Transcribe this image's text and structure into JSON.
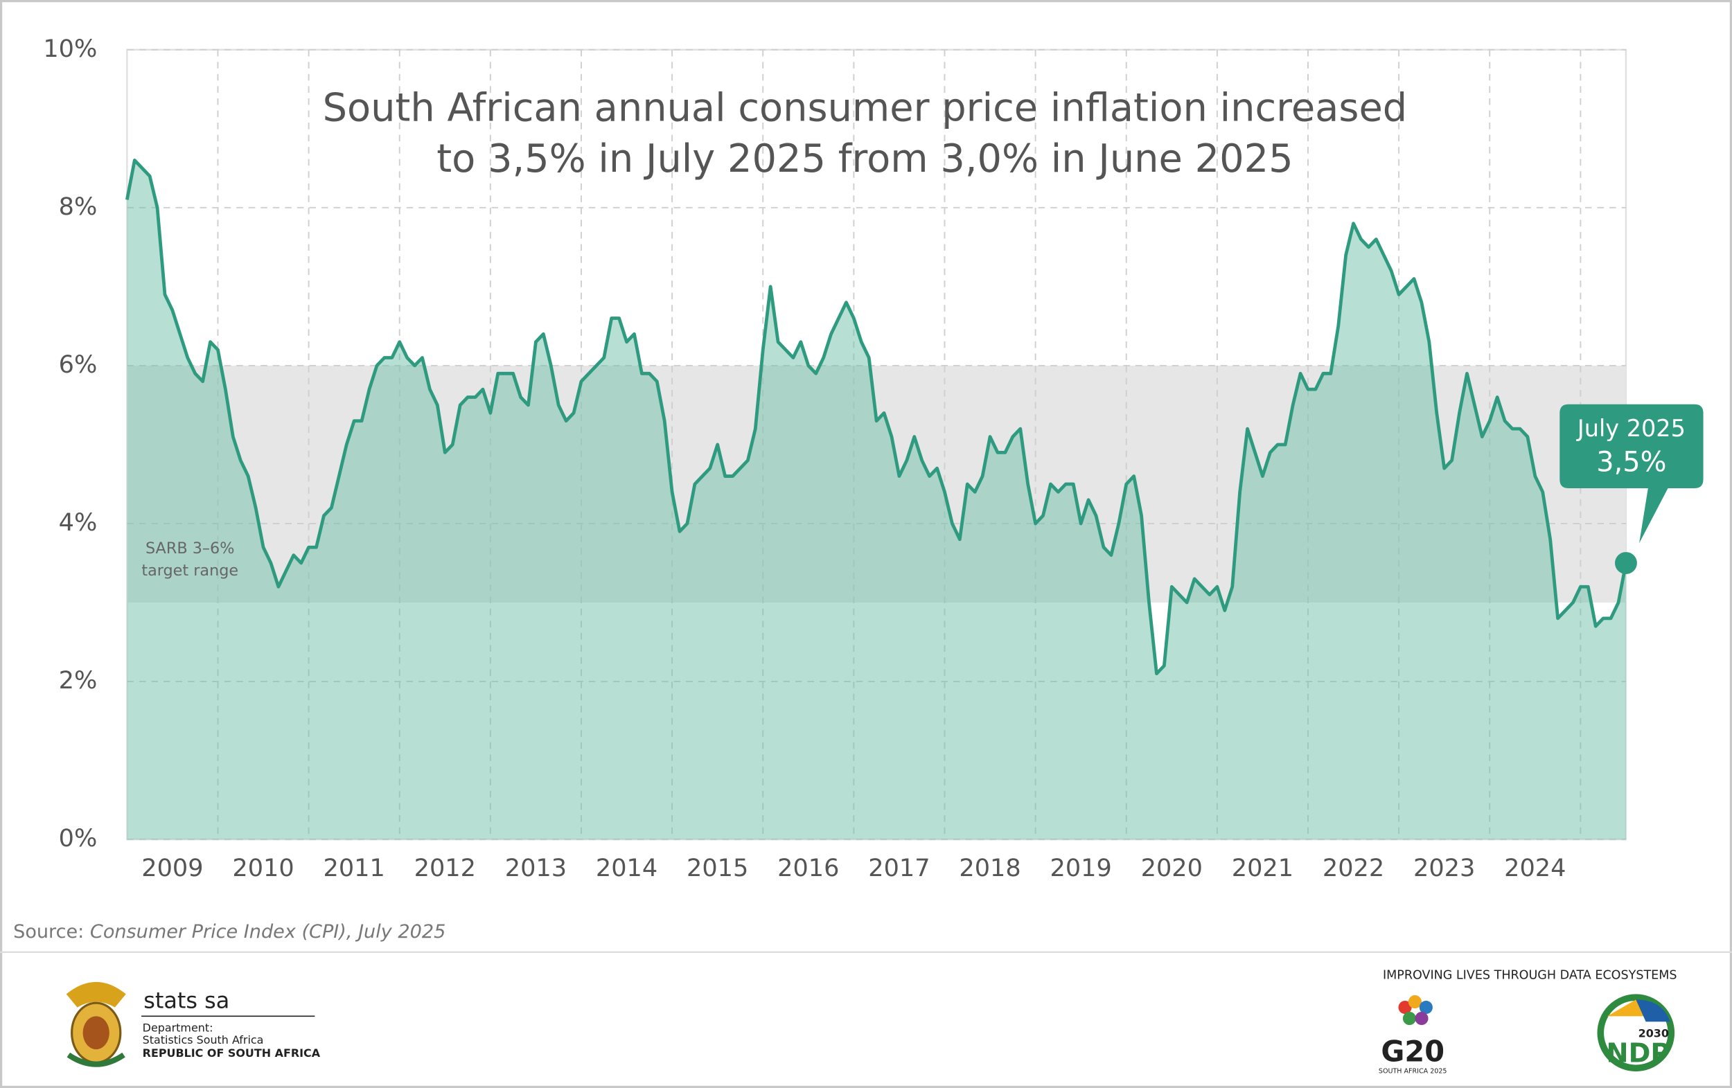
{
  "chart_data": {
    "type": "area",
    "title_lines": [
      "South African annual consumer price inflation increased",
      "to 3,5% in July 2025 from 3,0% in June 2025"
    ],
    "categories": [
      null,
      null,
      null,
      null,
      null,
      null,
      "2009",
      null,
      null,
      null,
      null,
      null,
      null,
      null,
      null,
      null,
      null,
      null,
      "2010",
      null,
      null,
      null,
      null,
      null,
      null,
      null,
      null,
      null,
      null,
      null,
      "2011",
      null,
      null,
      null,
      null,
      null,
      null,
      null,
      null,
      null,
      null,
      null,
      "2012",
      null,
      null,
      null,
      null,
      null,
      null,
      null,
      null,
      null,
      null,
      null,
      "2013",
      null,
      null,
      null,
      null,
      null,
      null,
      null,
      null,
      null,
      null,
      null,
      "2014",
      null,
      null,
      null,
      null,
      null,
      null,
      null,
      null,
      null,
      null,
      null,
      "2015",
      null,
      null,
      null,
      null,
      null,
      null,
      null,
      null,
      null,
      null,
      null,
      "2016",
      null,
      null,
      null,
      null,
      null,
      null,
      null,
      null,
      null,
      null,
      null,
      "2017",
      null,
      null,
      null,
      null,
      null,
      null,
      null,
      null,
      null,
      null,
      null,
      "2018",
      null,
      null,
      null,
      null,
      null,
      null,
      null,
      null,
      null,
      null,
      null,
      "2019",
      null,
      null,
      null,
      null,
      null,
      null,
      null,
      null,
      null,
      null,
      null,
      "2020",
      null,
      null,
      null,
      null,
      null,
      null,
      null,
      null,
      null,
      null,
      null,
      "2021",
      null,
      null,
      null,
      null,
      null,
      null,
      null,
      null,
      null,
      null,
      null,
      "2022",
      null,
      null,
      null,
      null,
      null,
      null,
      null,
      null,
      null,
      null,
      null,
      "2023",
      null,
      null,
      null,
      null,
      null,
      null,
      null,
      null,
      null,
      null,
      null,
      "2024",
      null,
      null,
      null,
      null,
      null,
      null,
      null,
      null,
      null,
      null,
      null,
      null
    ],
    "series": [
      {
        "name": "CPI",
        "color": "#2e9a7f",
        "area_color": "#6fc0aa",
        "values": [
          8.1,
          8.6,
          8.5,
          8.4,
          8.0,
          6.9,
          6.7,
          6.4,
          6.1,
          5.9,
          5.8,
          6.3,
          6.2,
          5.7,
          5.1,
          4.8,
          4.6,
          4.2,
          3.7,
          3.5,
          3.2,
          3.4,
          3.6,
          3.5,
          3.7,
          3.7,
          4.1,
          4.2,
          4.6,
          5.0,
          5.3,
          5.3,
          5.7,
          6.0,
          6.1,
          6.1,
          6.3,
          6.1,
          6.0,
          6.1,
          5.7,
          5.5,
          4.9,
          5.0,
          5.5,
          5.6,
          5.6,
          5.7,
          5.4,
          5.9,
          5.9,
          5.9,
          5.6,
          5.5,
          6.3,
          6.4,
          6.0,
          5.5,
          5.3,
          5.4,
          5.8,
          5.9,
          6.0,
          6.1,
          6.6,
          6.6,
          6.3,
          6.4,
          5.9,
          5.9,
          5.8,
          5.3,
          4.4,
          3.9,
          4.0,
          4.5,
          4.6,
          4.7,
          5.0,
          4.6,
          4.6,
          4.7,
          4.8,
          5.2,
          6.2,
          7.0,
          6.3,
          6.2,
          6.1,
          6.3,
          6.0,
          5.9,
          6.1,
          6.4,
          6.6,
          6.8,
          6.6,
          6.3,
          6.1,
          5.3,
          5.4,
          5.1,
          4.6,
          4.8,
          5.1,
          4.8,
          4.6,
          4.7,
          4.4,
          4.0,
          3.8,
          4.5,
          4.4,
          4.6,
          5.1,
          4.9,
          4.9,
          5.1,
          5.2,
          4.5,
          4.0,
          4.1,
          4.5,
          4.4,
          4.5,
          4.5,
          4.0,
          4.3,
          4.1,
          3.7,
          3.6,
          4.0,
          4.5,
          4.6,
          4.1,
          3.0,
          2.1,
          2.2,
          3.2,
          3.1,
          3.0,
          3.3,
          3.2,
          3.1,
          3.2,
          2.9,
          3.2,
          4.4,
          5.2,
          4.9,
          4.6,
          4.9,
          5.0,
          5.0,
          5.5,
          5.9,
          5.7,
          5.7,
          5.9,
          5.9,
          6.5,
          7.4,
          7.8,
          7.6,
          7.5,
          7.6,
          7.4,
          7.2,
          6.9,
          7.0,
          7.1,
          6.8,
          6.3,
          5.4,
          4.7,
          4.8,
          5.4,
          5.9,
          5.5,
          5.1,
          5.3,
          5.6,
          5.3,
          5.2,
          5.2,
          5.1,
          4.6,
          4.4,
          3.8,
          2.8,
          2.9,
          3.0,
          3.2,
          3.2,
          2.7,
          2.8,
          2.8,
          3.0,
          3.5
        ]
      }
    ],
    "ylim": [
      0,
      10
    ],
    "yticks": [
      {
        "value": 0,
        "label": "0%"
      },
      {
        "value": 2,
        "label": "2%"
      },
      {
        "value": 4,
        "label": "4%"
      },
      {
        "value": 6,
        "label": "6%"
      },
      {
        "value": 8,
        "label": "8%"
      },
      {
        "value": 10,
        "label": "10%"
      }
    ],
    "grid": true,
    "target_band": {
      "range": [
        3,
        6
      ],
      "color": "#e6e6e6",
      "label_lines": [
        "SARB 3–6%",
        "target range"
      ]
    },
    "callout": {
      "title": "July 2025",
      "label": "3,5%"
    },
    "source": {
      "prefix": "Source: ",
      "text": "Consumer Price Index (CPI), July 2025"
    }
  },
  "footer": {
    "brand": "stats sa",
    "department": "Department:",
    "org": "Statistics South Africa",
    "country": "REPUBLIC OF SOUTH AFRICA",
    "slogan": "IMPROVING LIVES THROUGH DATA ECOSYSTEMS",
    "g20": "G20",
    "g20_sub": "SOUTH AFRICA 2025",
    "ndp_year": "2030",
    "ndp": "NDP"
  }
}
